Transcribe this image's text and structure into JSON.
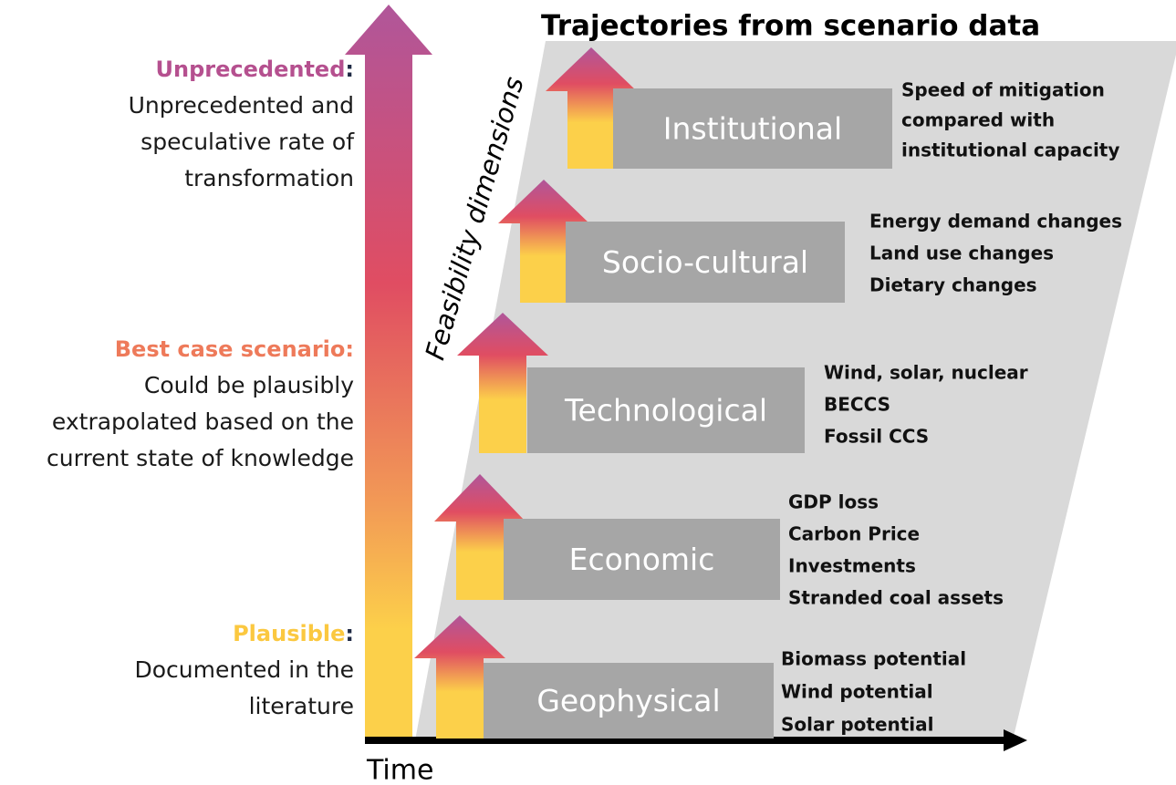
{
  "title": "Trajectories from scenario data",
  "axis_label": "Feasibility dimensions",
  "time_label": "Time",
  "levels": [
    {
      "name": "Unprecedented",
      "colon": ":",
      "lines": [
        "Unprecedented and",
        "speculative rate of",
        "transformation"
      ]
    },
    {
      "name": "Best case scenario:",
      "lines": [
        "Could be plausibly",
        "extrapolated based on the",
        "current state of knowledge"
      ]
    },
    {
      "name": "Plausible",
      "colon": ":",
      "lines": [
        "Documented in the",
        "literature"
      ]
    }
  ],
  "dimensions": [
    {
      "label": "Institutional",
      "items": [
        "Speed of mitigation",
        "compared with",
        "institutional capacity"
      ]
    },
    {
      "label": "Socio-cultural",
      "items": [
        "Energy demand changes",
        "Land use changes",
        "Dietary changes"
      ]
    },
    {
      "label": "Technological",
      "items": [
        "Wind, solar, nuclear",
        "BECCS",
        "Fossil CCS"
      ]
    },
    {
      "label": "Economic",
      "items": [
        "GDP loss",
        "Carbon Price",
        "Investments",
        "Stranded coal assets"
      ]
    },
    {
      "label": "Geophysical",
      "items": [
        "Biomass potential",
        "Wind potential",
        "Solar potential"
      ]
    }
  ]
}
